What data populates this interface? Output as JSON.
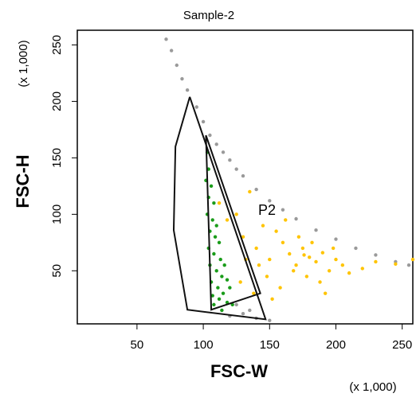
{
  "chart_data": {
    "type": "scatter",
    "title": "Sample-2",
    "x_label": "FSC-W",
    "y_label": "FSC-H",
    "x_multiplier": "(x 1,000)",
    "y_multiplier": "(x 1,000)",
    "gate_label": "P2",
    "xlim": [
      5,
      258
    ],
    "ylim": [
      3,
      263
    ],
    "xticks": [
      50,
      100,
      150,
      200,
      250
    ],
    "yticks": [
      50,
      100,
      150,
      200,
      250
    ],
    "series": [
      {
        "color": "#9a9a9a",
        "x": [
          72,
          76,
          80,
          84,
          88,
          95,
          100,
          105,
          110,
          115,
          120,
          125,
          130,
          140,
          150,
          160,
          170,
          185,
          200,
          215,
          230,
          245,
          255,
          120,
          130,
          140,
          150,
          125,
          135
        ],
        "y": [
          255,
          245,
          232,
          220,
          210,
          195,
          182,
          170,
          162,
          155,
          148,
          140,
          134,
          122,
          112,
          104,
          96,
          86,
          78,
          70,
          64,
          58,
          55,
          10,
          12,
          8,
          6,
          20,
          15
        ]
      },
      {
        "color": "#ffc400",
        "x": [
          112,
          118,
          125,
          130,
          135,
          140,
          145,
          150,
          155,
          160,
          165,
          170,
          175,
          180,
          185,
          190,
          195,
          200,
          205,
          210,
          220,
          230,
          245,
          258,
          128,
          138,
          148,
          158,
          168,
          178,
          188,
          198,
          172,
          182,
          162,
          152,
          142,
          132,
          192,
          176
        ],
        "y": [
          110,
          95,
          100,
          80,
          120,
          70,
          90,
          60,
          85,
          75,
          65,
          55,
          70,
          62,
          58,
          66,
          50,
          60,
          55,
          48,
          52,
          58,
          56,
          60,
          40,
          30,
          45,
          35,
          50,
          45,
          40,
          70,
          80,
          75,
          95,
          25,
          55,
          60,
          30,
          64
        ]
      },
      {
        "color": "#1a9c1a",
        "x": [
          103,
          104,
          102,
          106,
          104,
          108,
          103,
          107,
          110,
          105,
          109,
          112,
          104,
          108,
          113,
          116,
          105,
          110,
          114,
          118,
          106,
          111,
          115,
          120,
          107,
          112,
          118,
          122,
          108,
          114
        ],
        "y": [
          155,
          140,
          130,
          125,
          115,
          110,
          100,
          95,
          90,
          85,
          80,
          75,
          70,
          65,
          60,
          55,
          55,
          50,
          45,
          42,
          40,
          35,
          30,
          35,
          28,
          25,
          22,
          20,
          20,
          15
        ]
      }
    ],
    "gates": [
      {
        "color": "#111111",
        "x": [
          89.8,
          79,
          77.7,
          88,
          147,
          89.8
        ],
        "y": [
          204,
          160,
          86,
          15.5,
          7,
          204
        ]
      },
      {
        "color": "#111111",
        "x": [
          102,
          143,
          106,
          102
        ],
        "y": [
          170,
          30,
          15.5,
          170
        ]
      }
    ]
  }
}
